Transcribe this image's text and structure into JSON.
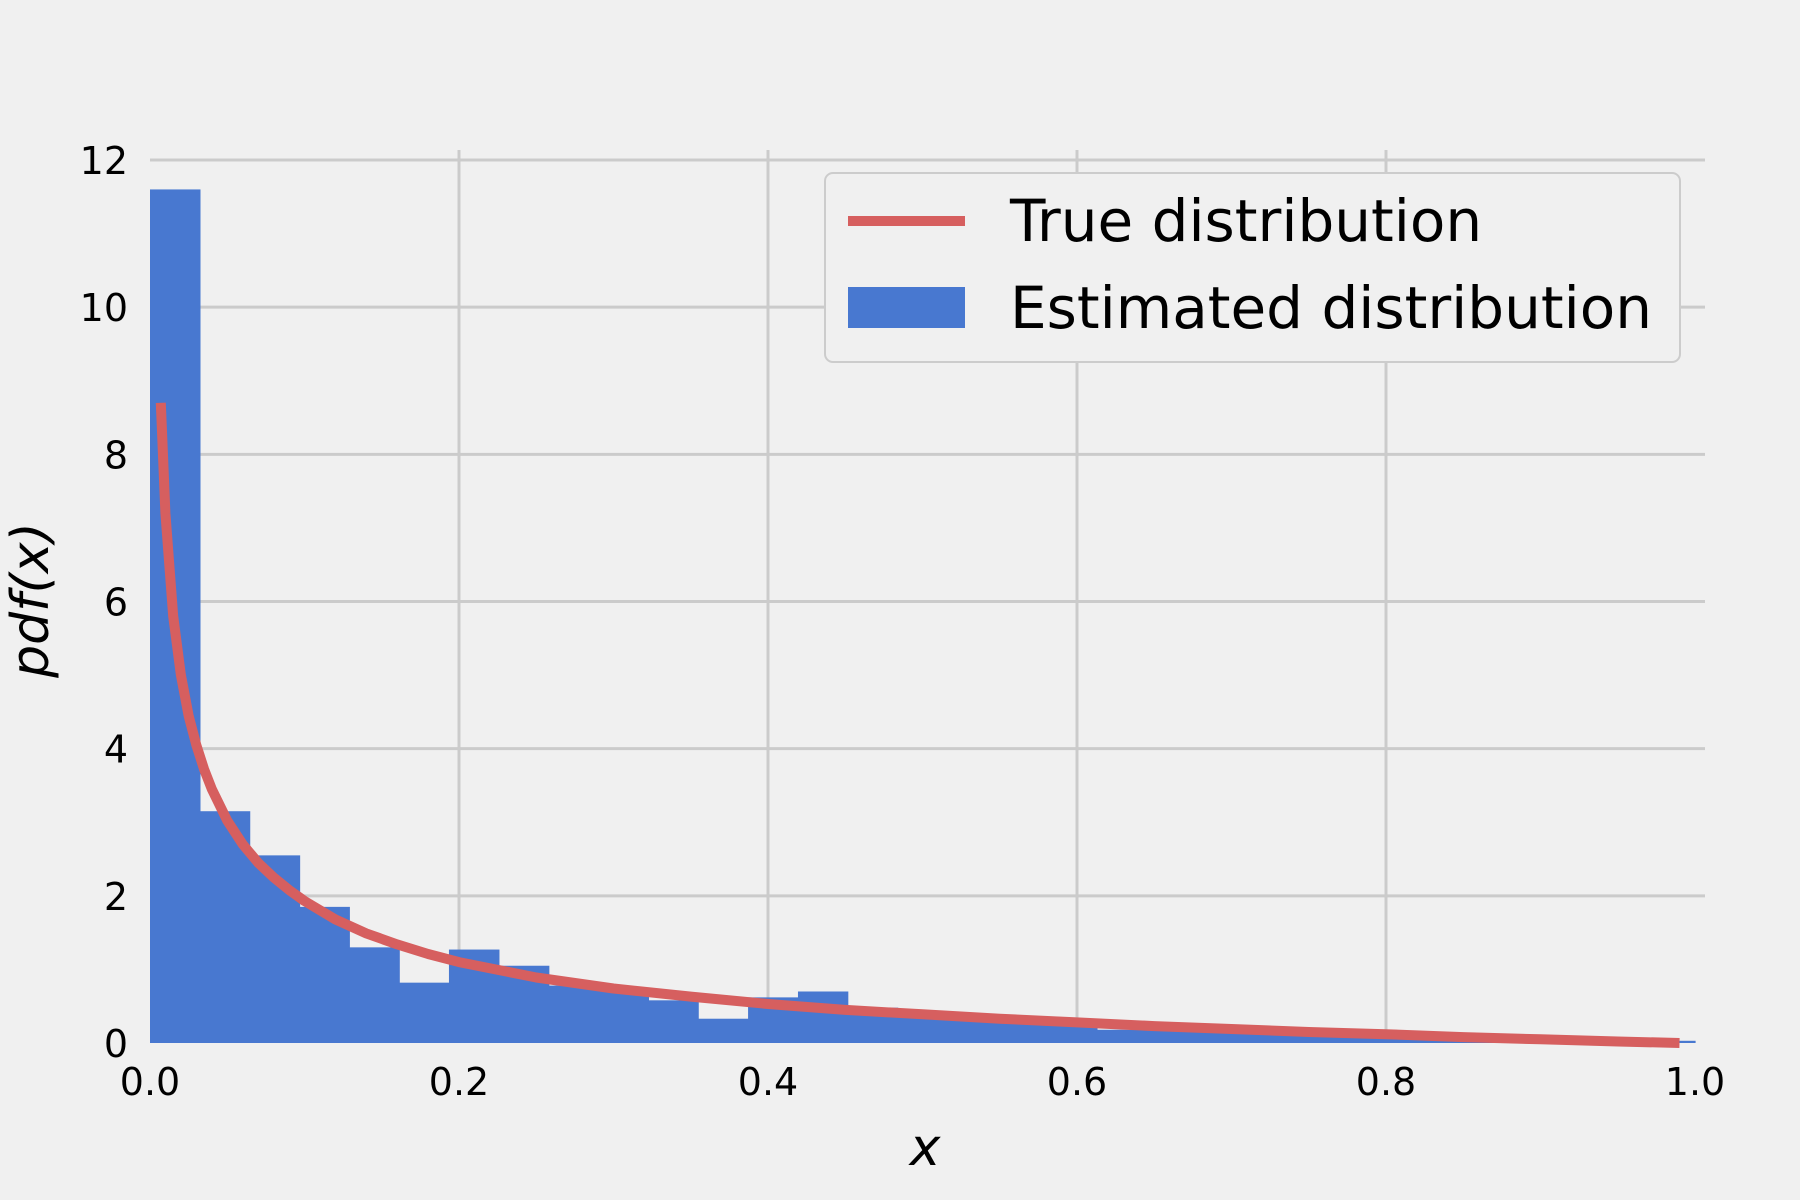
{
  "chart_data": {
    "type": "bar",
    "xlabel": "x",
    "ylabel": "pdf(x)",
    "xlim": [
      0.0,
      1.0
    ],
    "ylim": [
      0,
      12
    ],
    "grid": true,
    "legend_position": "top-right",
    "x_ticks": [
      "0.0",
      "0.2",
      "0.4",
      "0.6",
      "0.8",
      "1.0"
    ],
    "y_ticks": [
      "0",
      "2",
      "4",
      "6",
      "8",
      "10",
      "12"
    ],
    "colors": {
      "background": "#f0f0f0",
      "grid": "#cbcbcb",
      "histogram": "#4878d0",
      "curve": "#d65f5f",
      "legend_border": "#cccccc",
      "legend_bg": "#f0f0f0"
    },
    "series": [
      {
        "name": "True distribution",
        "kind": "line",
        "x": [
          0.007,
          0.01,
          0.015,
          0.02,
          0.025,
          0.03,
          0.035,
          0.04,
          0.05,
          0.06,
          0.07,
          0.08,
          0.09,
          0.1,
          0.12,
          0.14,
          0.16,
          0.18,
          0.2,
          0.25,
          0.3,
          0.35,
          0.4,
          0.45,
          0.5,
          0.55,
          0.6,
          0.65,
          0.7,
          0.75,
          0.8,
          0.85,
          0.9,
          0.95,
          0.99
        ],
        "y": [
          8.7,
          7.2,
          5.8,
          5.0,
          4.45,
          4.05,
          3.72,
          3.45,
          3.02,
          2.7,
          2.45,
          2.25,
          2.08,
          1.93,
          1.68,
          1.49,
          1.34,
          1.21,
          1.1,
          0.89,
          0.74,
          0.63,
          0.53,
          0.45,
          0.39,
          0.33,
          0.28,
          0.23,
          0.19,
          0.15,
          0.12,
          0.08,
          0.05,
          0.02,
          0.0
        ]
      },
      {
        "name": "Estimated distribution",
        "kind": "histogram",
        "bin_edges": [
          0.0,
          0.0323,
          0.0645,
          0.0968,
          0.129,
          0.1613,
          0.1935,
          0.2258,
          0.2581,
          0.2903,
          0.3226,
          0.3548,
          0.3871,
          0.4194,
          0.4516,
          0.4839,
          0.5161,
          0.5484,
          0.5806,
          0.6129,
          0.6452,
          0.6774,
          0.7097,
          0.7419,
          0.7742,
          0.8065,
          0.8387,
          0.871,
          0.9032,
          0.9355,
          0.9677,
          1.0
        ],
        "values": [
          11.6,
          3.15,
          2.55,
          1.85,
          1.3,
          0.82,
          1.27,
          1.05,
          0.78,
          0.72,
          0.58,
          0.33,
          0.62,
          0.7,
          0.48,
          0.4,
          0.38,
          0.35,
          0.28,
          0.18,
          0.17,
          0.15,
          0.14,
          0.13,
          0.12,
          0.11,
          0.1,
          0.08,
          0.07,
          0.05,
          0.03
        ]
      }
    ]
  }
}
